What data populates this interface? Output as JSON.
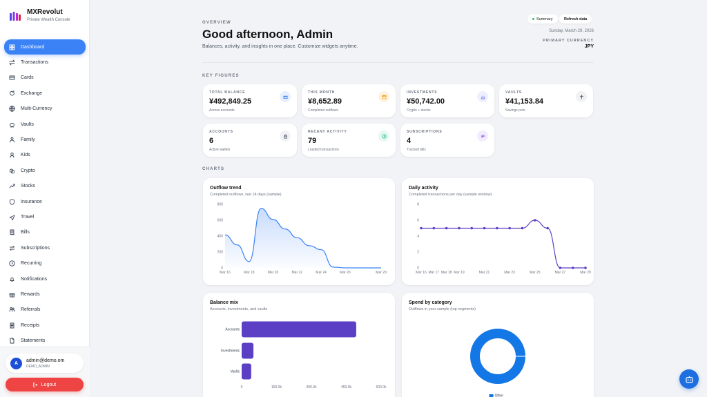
{
  "brand": {
    "name": "MXRevolut",
    "subtitle": "Private Wealth Console"
  },
  "sidebar": {
    "items": [
      {
        "label": "Dashboard",
        "icon": "grid-icon",
        "active": true
      },
      {
        "label": "Transactions",
        "icon": "arrows-icon"
      },
      {
        "label": "Cards",
        "icon": "card-icon"
      },
      {
        "label": "Exchange",
        "icon": "refresh-icon"
      },
      {
        "label": "Multi-Currency",
        "icon": "globe-icon"
      },
      {
        "label": "Vaults",
        "icon": "piggy-icon"
      },
      {
        "label": "Family",
        "icon": "family-icon"
      },
      {
        "label": "Kids",
        "icon": "kids-icon"
      },
      {
        "label": "Crypto",
        "icon": "coins-icon"
      },
      {
        "label": "Stocks",
        "icon": "trend-icon"
      },
      {
        "label": "Insurance",
        "icon": "shield-icon"
      },
      {
        "label": "Travel",
        "icon": "plane-icon"
      },
      {
        "label": "Bills",
        "icon": "receipt-icon"
      },
      {
        "label": "Subscriptions",
        "icon": "repeat-icon"
      },
      {
        "label": "Recurring",
        "icon": "clock-icon"
      },
      {
        "label": "Notifications",
        "icon": "bell-icon"
      },
      {
        "label": "Rewards",
        "icon": "gift-icon"
      },
      {
        "label": "Referrals",
        "icon": "users-icon"
      },
      {
        "label": "Receipts",
        "icon": "document-icon"
      },
      {
        "label": "Statements",
        "icon": "file-icon"
      }
    ]
  },
  "user": {
    "initial": "A",
    "email": "admin@demo.om",
    "role": "DEMO_ADMIN"
  },
  "logout_label": "Logout",
  "header": {
    "eyebrow": "OVERVIEW",
    "title": "Good afternoon, Admin",
    "subtitle": "Balances, activity, and insights in one place. Customize widgets anytime.",
    "summary_label": "Summary",
    "refresh_label": "Refresh data",
    "date": "Sunday, March 29, 2026",
    "currency_label": "PRIMARY CURRENCY",
    "currency": "JPY"
  },
  "key_figures_label": "KEY FIGURES",
  "charts_label": "CHARTS",
  "kpis": [
    {
      "label": "TOTAL BALANCE",
      "value": "¥492,849.25",
      "sub": "Across accounts",
      "icon": "wallet-icon",
      "color": "#3b82f6",
      "bg": "#e8f0fe"
    },
    {
      "label": "THIS MONTH",
      "value": "¥8,652.89",
      "sub": "Completed outflows",
      "icon": "calendar-icon",
      "color": "#f59e0b",
      "bg": "#fef3e0"
    },
    {
      "label": "INVESTMENTS",
      "value": "¥50,742.00",
      "sub": "Crypto + stocks",
      "icon": "chart-icon",
      "color": "#6366f1",
      "bg": "#eef0fd"
    },
    {
      "label": "VAULTS",
      "value": "¥41,153.84",
      "sub": "Savings pots",
      "icon": "vault-icon",
      "color": "#374151",
      "bg": "#f1f2f4"
    },
    {
      "label": "ACCOUNTS",
      "value": "6",
      "sub": "Active wallets",
      "icon": "lock-icon",
      "color": "#374151",
      "bg": "#f1f2f4"
    },
    {
      "label": "RECENT ACTIVITY",
      "value": "79",
      "sub": "Loaded transactions",
      "icon": "clock-icon",
      "color": "#10b981",
      "bg": "#e7f8f1"
    },
    {
      "label": "SUBSCRIPTIONS",
      "value": "4",
      "sub": "Tracked bills",
      "icon": "list-icon",
      "color": "#8b5cf6",
      "bg": "#f2edfe"
    }
  ],
  "chart_data": [
    {
      "type": "area",
      "title": "Outflow trend",
      "subtitle": "Completed outflows, last 14 days (sample)",
      "x": [
        "Mar 16",
        "Mar 17",
        "Mar 18",
        "Mar 19",
        "Mar 20",
        "Mar 21",
        "Mar 22",
        "Mar 23",
        "Mar 24",
        "Mar 25",
        "Mar 26",
        "Mar 27",
        "Mar 28",
        "Mar 29"
      ],
      "xticks": [
        "Mar 16",
        "Mar 18",
        "Mar 20",
        "Mar 22",
        "Mar 24",
        "Mar 26",
        "Mar 29"
      ],
      "values": [
        415,
        290,
        80,
        750,
        610,
        490,
        380,
        280,
        230,
        10,
        0,
        0,
        0,
        0
      ],
      "ylim": [
        0,
        800
      ],
      "yticks": [
        0,
        200,
        400,
        600,
        800
      ],
      "color": "#3b82f6"
    },
    {
      "type": "line",
      "title": "Daily activity",
      "subtitle": "Completed transactions per day (sample window)",
      "x": [
        "Mar 16",
        "Mar 17",
        "Mar 18",
        "Mar 19",
        "Mar 20",
        "Mar 21",
        "Mar 22",
        "Mar 23",
        "Mar 24",
        "Mar 25",
        "Mar 26",
        "Mar 27",
        "Mar 28",
        "Mar 29"
      ],
      "xticks": [
        "Mar 16",
        "Mar 17",
        "Mar 18",
        "Mar 19",
        "Mar 21",
        "Mar 23",
        "Mar 25",
        "Mar 27",
        "Mar 29"
      ],
      "values": [
        5,
        5,
        5,
        5,
        5,
        5,
        5,
        5,
        5,
        6,
        5,
        0,
        0,
        0
      ],
      "ylim": [
        0,
        8
      ],
      "yticks": [
        0,
        2,
        4,
        6,
        8
      ],
      "color": "#5b3fc4"
    },
    {
      "type": "bar",
      "title": "Balance mix",
      "subtitle": "Accounts, investments, and vaults",
      "categories": [
        "Accounts",
        "Investments",
        "Vaults"
      ],
      "values": [
        492849,
        50742,
        41154
      ],
      "xlim": [
        0,
        600000
      ],
      "xticks": [
        "0",
        "150.0k",
        "300.0k",
        "450.0k",
        "600.0k"
      ],
      "color": "#5b3fc4"
    },
    {
      "type": "pie",
      "title": "Spend by category",
      "subtitle": "Outflows in your sample (top segments)",
      "slices": [
        {
          "name": "Other",
          "value": 100
        }
      ],
      "color": "#1477e6"
    }
  ]
}
